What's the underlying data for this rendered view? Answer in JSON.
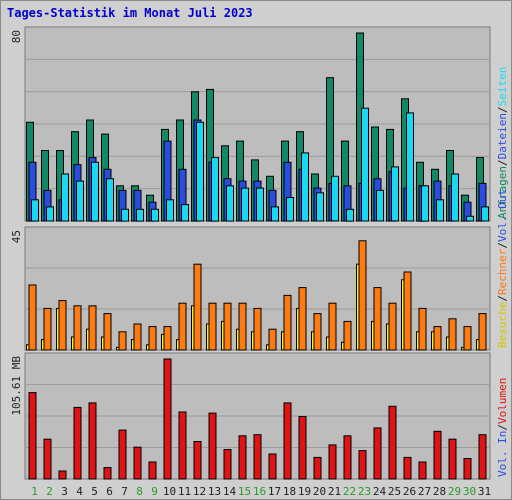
{
  "page": {
    "title": "Tages-Statistik im Monat Juli 2023"
  },
  "colors": {
    "panel_bg": "#bdbdbd",
    "anfragen": "#118866",
    "dateien": "#2a4de0",
    "seiten": "#1ad8f0",
    "besuche": "#ffee22",
    "rechner": "#ff7a10",
    "volumen": "#e01414",
    "weekday_label": "#222222",
    "weekend_label": "#2a9a2a"
  },
  "chart_data": {
    "type": "bar",
    "title": "Tages-Statistik im Monat Juli 2023",
    "categories": [
      "1",
      "2",
      "3",
      "4",
      "5",
      "6",
      "7",
      "8",
      "9",
      "10",
      "11",
      "12",
      "13",
      "14",
      "15",
      "16",
      "17",
      "18",
      "19",
      "20",
      "21",
      "22",
      "23",
      "24",
      "25",
      "26",
      "27",
      "28",
      "29",
      "30",
      "31"
    ],
    "weekend_days": [
      "1",
      "2",
      "8",
      "9",
      "15",
      "16",
      "22",
      "23",
      "29",
      "30"
    ],
    "panels": [
      {
        "id": "requests",
        "scale_label": "80",
        "ymax": 80,
        "right_labels": [
          {
            "text": "Anfragen",
            "color": "#118866"
          },
          {
            "text": "/",
            "color": "#222222"
          },
          {
            "text": "Dateien",
            "color": "#2a4de0"
          },
          {
            "text": "/",
            "color": "#222222"
          },
          {
            "text": "Seiten",
            "color": "#1ad8f0"
          }
        ],
        "series": [
          {
            "name": "Anfragen",
            "color": "#118866",
            "values": [
              42,
              30,
              30,
              38,
              43,
              37,
              15,
              15,
              11,
              39,
              43,
              55,
              56,
              32,
              34,
              26,
              19,
              34,
              38,
              20,
              61,
              34,
              80,
              40,
              39,
              52,
              25,
              22,
              30,
              11,
              27
            ]
          },
          {
            "name": "Dateien",
            "color": "#2a4de0",
            "values": [
              25,
              13,
              9,
              24,
              27,
              22,
              13,
              13,
              8,
              34,
              22,
              43,
              25,
              18,
              17,
              17,
              13,
              25,
              22,
              14,
              16,
              15,
              16,
              18,
              21,
              14,
              15,
              17,
              15,
              8,
              16
            ]
          },
          {
            "name": "Seiten",
            "color": "#1ad8f0",
            "values": [
              9,
              6,
              20,
              17,
              25,
              18,
              5,
              5,
              5,
              9,
              7,
              42,
              27,
              15,
              14,
              14,
              6,
              10,
              29,
              12,
              19,
              5,
              48,
              13,
              23,
              46,
              15,
              9,
              20,
              2,
              6
            ]
          }
        ]
      },
      {
        "id": "visits",
        "scale_label": "45",
        "ymax": 45,
        "right_labels": [
          {
            "text": "Besuche",
            "color": "#d4c400"
          },
          {
            "text": "/",
            "color": "#222222"
          },
          {
            "text": "Rechner",
            "color": "#ff7a10"
          },
          {
            "text": "/",
            "color": "#222222"
          },
          {
            "text": "Vol. Out",
            "color": "#2a4de0"
          }
        ],
        "series": [
          {
            "name": "Besuche",
            "color": "#ffee22",
            "values": [
              2,
              4,
              16,
              5,
              8,
              5,
              1,
              4,
              2,
              6,
              4,
              17,
              10,
              11,
              8,
              7,
              2,
              7,
              16,
              7,
              5,
              3,
              33,
              11,
              10,
              27,
              7,
              7,
              5,
              1,
              4
            ]
          },
          {
            "name": "Rechner",
            "color": "#ff7a10",
            "values": [
              25,
              16,
              19,
              17,
              17,
              14,
              7,
              10,
              9,
              9,
              18,
              33,
              18,
              18,
              18,
              16,
              8,
              21,
              24,
              14,
              18,
              11,
              42,
              24,
              18,
              30,
              16,
              9,
              12,
              9,
              14
            ]
          },
          {
            "name": "Vol. Out",
            "color": "#2a4de0",
            "values": [
              0,
              0,
              0,
              0,
              0,
              0,
              0,
              0,
              0,
              0,
              0,
              0,
              0,
              0,
              0,
              0,
              0,
              0,
              0,
              0,
              0,
              0,
              0,
              0,
              0,
              0,
              0,
              0,
              0,
              0,
              0
            ]
          }
        ]
      },
      {
        "id": "volume",
        "scale_label": "105.61 MB",
        "ymax": 105.61,
        "right_labels": [
          {
            "text": "Vol. In",
            "color": "#2a4de0"
          },
          {
            "text": "/",
            "color": "#222222"
          },
          {
            "text": "Volumen",
            "color": "#e01414"
          }
        ],
        "series": [
          {
            "name": "Volumen",
            "color": "#e01414",
            "values": [
              76,
              35,
              7,
              63,
              67,
              10,
              43,
              28,
              15,
              105.61,
              59,
              33,
              58,
              26,
              38,
              39,
              22,
              67,
              55,
              19,
              30,
              38,
              25,
              45,
              64,
              19,
              15,
              42,
              35,
              18,
              39
            ]
          }
        ]
      }
    ]
  }
}
